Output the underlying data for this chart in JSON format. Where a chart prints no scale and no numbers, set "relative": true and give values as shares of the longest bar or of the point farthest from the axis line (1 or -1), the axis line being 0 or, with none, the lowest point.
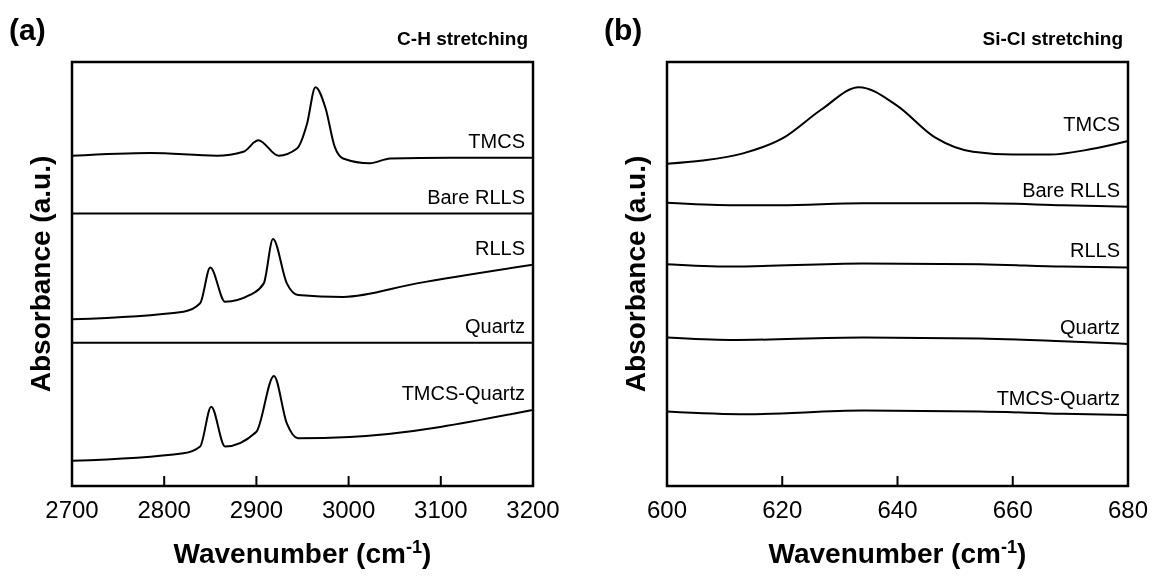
{
  "chart_data": [
    {
      "type": "line",
      "title": "C-H stretching",
      "annotations": [
        "(a)"
      ],
      "xlabel": "Wavenumber (cm$^{-1}$)",
      "ylabel": "Absorbance (a.u.)",
      "relative": true,
      "xlim": [
        2700,
        3200
      ],
      "xticks": [
        2700,
        2800,
        2900,
        3000,
        3100,
        3200
      ],
      "series": [
        {
          "name": "TMCS",
          "color": "#000000",
          "x": [
            2700,
            2785,
            2857,
            2886,
            2902,
            2924,
            2944,
            2955,
            2964,
            2975,
            2985,
            2994,
            3023,
            3045,
            3110,
            3198
          ],
          "values": [
            0.828,
            0.835,
            0.828,
            0.838,
            0.867,
            0.828,
            0.846,
            0.909,
            1,
            0.947,
            0.85,
            0.821,
            0.809,
            0.821,
            0.823,
            0.823
          ]
        },
        {
          "name": "Bare RLLS",
          "color": "#000000",
          "x": [
            2700,
            3200
          ],
          "values": [
            0.683,
            0.683
          ]
        },
        {
          "name": "RLLS",
          "color": "#000000",
          "x": [
            2700,
            2821,
            2839,
            2850,
            2866,
            2893,
            2908,
            2918,
            2933,
            2945,
            2994,
            3074,
            3198
          ],
          "values": [
            0.418,
            0.437,
            0.458,
            0.548,
            0.462,
            0.479,
            0.508,
            0.619,
            0.508,
            0.479,
            0.474,
            0.508,
            0.554
          ]
        },
        {
          "name": "Quartz",
          "color": "#000000",
          "x": [
            2700,
            3200
          ],
          "values": [
            0.359,
            0.359
          ]
        },
        {
          "name": "TMCS-Quartz",
          "color": "#000000",
          "x": [
            2700,
            2821,
            2839,
            2851,
            2866,
            2900,
            2919,
            2933,
            2945,
            3001,
            3198
          ],
          "values": [
            0.063,
            0.082,
            0.099,
            0.199,
            0.099,
            0.136,
            0.276,
            0.157,
            0.12,
            0.123,
            0.19
          ]
        }
      ]
    },
    {
      "type": "line",
      "title": "Si-Cl stretching",
      "annotations": [
        "(b)"
      ],
      "xlabel": "Wavenumber (cm$^{-1}$)",
      "ylabel": "Absorbance (a.u.)",
      "relative": true,
      "xlim": [
        600,
        680
      ],
      "xticks": [
        600,
        620,
        640,
        660,
        680
      ],
      "series": [
        {
          "name": "TMCS",
          "color": "#000000",
          "x": [
            600,
            606.2,
            613.2,
            620.1,
            626.8,
            633.3,
            639.8,
            646.5,
            653.1,
            660,
            666.4,
            673.4,
            680
          ],
          "values": [
            0.808,
            0.816,
            0.834,
            0.872,
            0.944,
            1,
            0.955,
            0.874,
            0.838,
            0.831,
            0.831,
            0.844,
            0.865
          ]
        },
        {
          "name": "Bare RLLS",
          "color": "#000000",
          "x": [
            600,
            610.9,
            619.6,
            634,
            654.3,
            668.7,
            680
          ],
          "values": [
            0.71,
            0.704,
            0.704,
            0.709,
            0.709,
            0.704,
            0.7
          ]
        },
        {
          "name": "RLLS",
          "color": "#000000",
          "x": [
            600,
            610.9,
            634,
            654.3,
            668.7,
            680
          ],
          "values": [
            0.556,
            0.55,
            0.558,
            0.556,
            0.55,
            0.548
          ]
        },
        {
          "name": "Quartz",
          "color": "#000000",
          "x": [
            600,
            610.9,
            634,
            654.3,
            668.7,
            680
          ],
          "values": [
            0.372,
            0.366,
            0.372,
            0.37,
            0.363,
            0.356
          ]
        },
        {
          "name": "TMCS-Quartz",
          "color": "#000000",
          "x": [
            600,
            613.8,
            634,
            654.3,
            668.7,
            680
          ],
          "values": [
            0.187,
            0.18,
            0.189,
            0.187,
            0.181,
            0.178
          ]
        }
      ]
    }
  ]
}
